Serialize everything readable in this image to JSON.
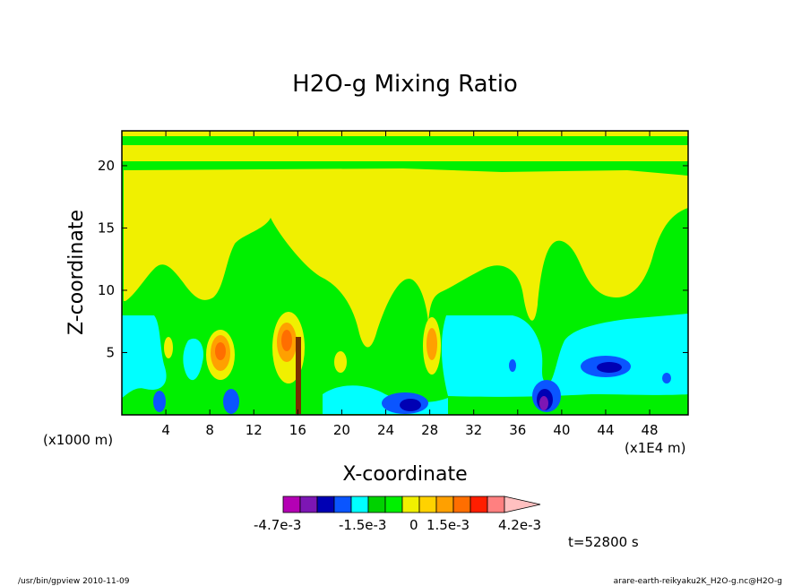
{
  "chart_data": {
    "type": "heatmap",
    "title": "H2O-g Mixing Ratio",
    "xlabel": "X-coordinate",
    "ylabel": "Z-coordinate",
    "x_unit_left": "(x1000 m)",
    "x_unit_right": "(x1E4 m)",
    "xlim": [
      0,
      51.5
    ],
    "ylim": [
      0,
      22.8
    ],
    "xticks": [
      4,
      8,
      12,
      16,
      20,
      24,
      28,
      32,
      36,
      40,
      44,
      48
    ],
    "yticks": [
      5,
      10,
      15,
      20
    ],
    "colorbar": {
      "colors": [
        "#b400b4",
        "#7d16b4",
        "#0000b4",
        "#0a55ff",
        "#00ffff",
        "#00d200",
        "#00f000",
        "#f0f000",
        "#ffd200",
        "#ffa000",
        "#ff6e00",
        "#ff1e00",
        "#ff8080",
        "#ffc0c0"
      ],
      "labels": [
        "-4.7e-3",
        "-1.5e-3",
        "0",
        "1.5e-3",
        "4.2e-3"
      ]
    },
    "regions": [
      {
        "level": "-4.7e-3",
        "fill": "#b400b4",
        "x": 38.3,
        "z": 0.8
      },
      {
        "level": "-1.5e-3",
        "fill": "#0000b4",
        "x": 26.3,
        "z": 0.9
      },
      {
        "level": "0",
        "fill": "#00ffff",
        "x": 37,
        "z": 4
      },
      {
        "level": "0",
        "fill": "#00f000",
        "x": 20,
        "z": 9
      },
      {
        "level": "1.5e-3",
        "fill": "#f0f000",
        "x": 30,
        "z": 15
      },
      {
        "level": "4.2e-3",
        "fill": "#ff6e00",
        "x": 8.5,
        "z": 4.8
      },
      {
        "level": "4.2e-3",
        "fill": "#ff6e00",
        "x": 15.2,
        "z": 5.5
      },
      {
        "level": "4.2e-3",
        "fill": "#ff6e00",
        "x": 28,
        "z": 5.5
      }
    ]
  },
  "time_label": "t=52800 s",
  "footer_left": "/usr/bin/gpview   2010-11-09",
  "footer_right": "arare-earth-reikyaku2K_H2O-g.nc@H2O-g"
}
